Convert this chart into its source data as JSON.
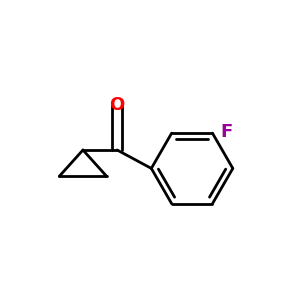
{
  "background_color": "#ffffff",
  "bond_color": "#000000",
  "oxygen_color": "#ff0000",
  "fluorine_color": "#990099",
  "bond_width": 2.0,
  "font_size_atom": 13,
  "fig_width": 3.0,
  "fig_height": 3.0,
  "dpi": 100,
  "xlim": [
    -0.5,
    0.62
  ],
  "ylim": [
    -0.3,
    0.5
  ]
}
